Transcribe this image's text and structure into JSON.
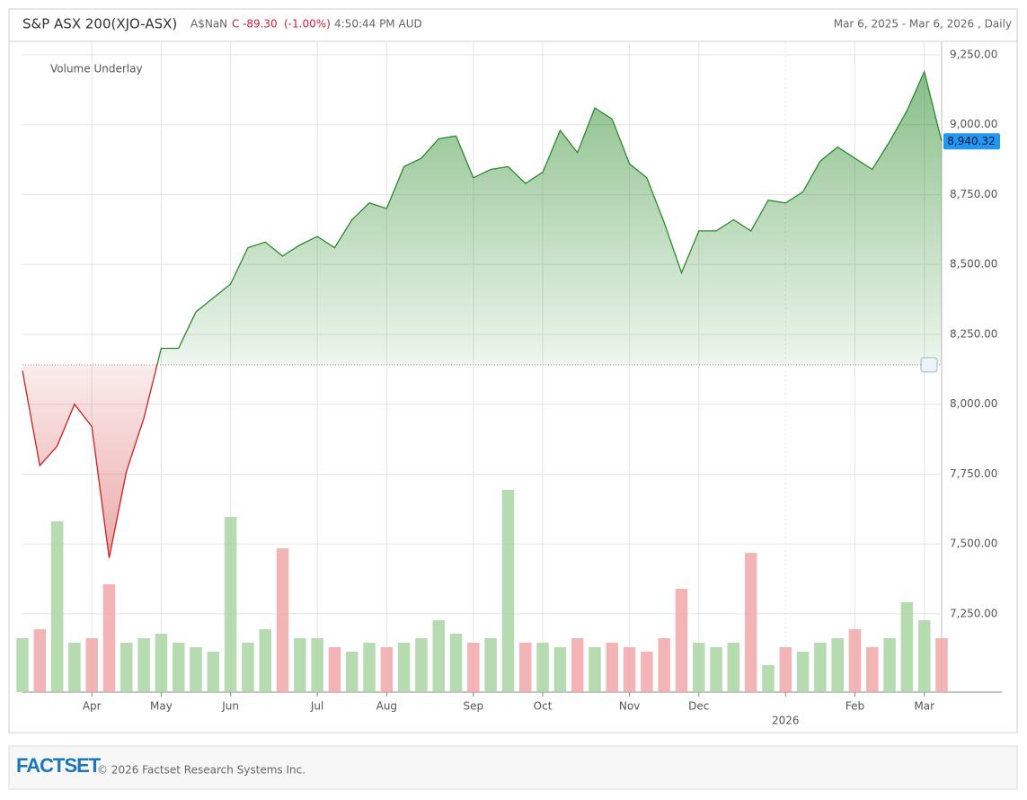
{
  "chart_data": {
    "type": "area",
    "title": "S&P ASX 200(XJO-ASX)",
    "currency": "A$NaN",
    "change_prefix": "C",
    "change": "-89.30",
    "change_pct": "(-1.00%)",
    "time": "4:50:44 PM AUD",
    "range": "Mar 6, 2025 - Mar 6, 2026 , Daily",
    "categories": [
      null,
      null,
      null,
      null,
      "Apr",
      null,
      null,
      null,
      "May",
      null,
      null,
      null,
      "Jun",
      null,
      null,
      null,
      null,
      "Jul",
      null,
      null,
      null,
      "Aug",
      null,
      null,
      null,
      null,
      "Sep",
      null,
      null,
      null,
      "Oct",
      null,
      null,
      null,
      null,
      "Nov",
      null,
      null,
      null,
      "Dec",
      null,
      null,
      null,
      null,
      "2026",
      null,
      null,
      null,
      "Feb",
      null,
      null,
      null,
      "Mar",
      null
    ],
    "series": [
      {
        "values": [
          8120,
          7780,
          7850,
          8000,
          7920,
          7450,
          7760,
          7950,
          8200,
          8200,
          8330,
          8380,
          8430,
          8560,
          8580,
          8530,
          8570,
          8600,
          8560,
          8660,
          8720,
          8700,
          8850,
          8880,
          8950,
          8960,
          8810,
          8840,
          8850,
          8790,
          8830,
          8980,
          8900,
          9060,
          9020,
          8860,
          8810,
          8650,
          8470,
          8620,
          8620,
          8660,
          8620,
          8730,
          8720,
          8760,
          8870,
          8920,
          8880,
          8840,
          8940,
          9050,
          9190,
          8940.32
        ],
        "up_color": "#2a8a2a",
        "down_color": "#cc2020"
      }
    ],
    "baseline": 8141,
    "last_label": "8,940.32",
    "last_color": "#2196f3",
    "volume": {
      "label": "Volume Underlay",
      "values": [
        60,
        70,
        190,
        55,
        60,
        120,
        55,
        60,
        65,
        55,
        50,
        45,
        195,
        55,
        70,
        160,
        60,
        60,
        50,
        45,
        55,
        50,
        55,
        60,
        80,
        65,
        55,
        60,
        225,
        55,
        55,
        50,
        60,
        50,
        55,
        50,
        45,
        60,
        115,
        55,
        50,
        55,
        155,
        30,
        50,
        45,
        55,
        60,
        70,
        50,
        60,
        100,
        80,
        60
      ],
      "up_color": "#a9d5a3",
      "down_color": "#f0a7a7"
    },
    "ylim": [
      6970,
      9295
    ],
    "yticks": [
      {
        "value": 9250,
        "label": "9,250.00"
      },
      {
        "value": 9000,
        "label": "9,000.00"
      },
      {
        "value": 8750,
        "label": "8,750.00"
      },
      {
        "value": 8500,
        "label": "8,500.00"
      },
      {
        "value": 8250,
        "label": "8,250.00"
      },
      {
        "value": 8000,
        "label": "8,000.00"
      },
      {
        "value": 7750,
        "label": "7,750.00"
      },
      {
        "value": 7500,
        "label": "7,500.00"
      },
      {
        "value": 7250,
        "label": "7,250.00"
      }
    ],
    "grid": true
  },
  "footer": {
    "logo": "FACTSET",
    "copyright": "© 2026 Factset Research Systems Inc."
  }
}
